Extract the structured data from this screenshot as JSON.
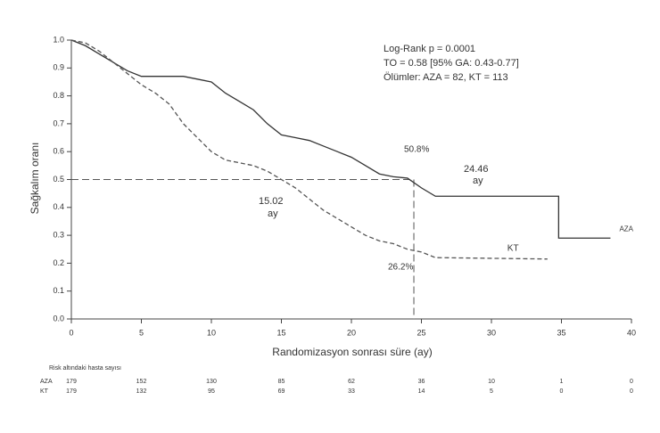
{
  "chart_data": {
    "type": "line",
    "ylabel": "Sağkalım oranı",
    "xlabel": "Randomizasyon sonrası süre (ay)",
    "xlim": [
      0,
      40
    ],
    "xticks": [
      0,
      5,
      10,
      15,
      20,
      25,
      30,
      35,
      40
    ],
    "ylim": [
      0,
      1
    ],
    "yticks": [
      {
        "value": 0,
        "label": "0.0"
      },
      0.1,
      0.2,
      0.3,
      0.4,
      0.5,
      0.6,
      0.7,
      0.8,
      0.9,
      {
        "value": 1,
        "label": "1.0"
      }
    ],
    "series": [
      {
        "name": "AZA",
        "color": "#333333",
        "dashed": false,
        "x": [
          0,
          1,
          2,
          3,
          4,
          5,
          7,
          8,
          9,
          10,
          11,
          12,
          13,
          14,
          15,
          16,
          17,
          18,
          19,
          20,
          21,
          22,
          23,
          24,
          25,
          26,
          34.8,
          34.8,
          38.5
        ],
        "values": [
          1,
          0.98,
          0.95,
          0.92,
          0.89,
          0.87,
          0.87,
          0.87,
          0.86,
          0.85,
          0.81,
          0.78,
          0.75,
          0.7,
          0.66,
          0.65,
          0.64,
          0.62,
          0.6,
          0.58,
          0.55,
          0.52,
          0.51,
          0.505,
          0.47,
          0.44,
          0.44,
          0.29,
          0.29
        ]
      },
      {
        "name": "KT",
        "color": "#555555",
        "dashed": true,
        "x": [
          0,
          1,
          2,
          3,
          4,
          5,
          6,
          7,
          8,
          9,
          10,
          11,
          12,
          13,
          14,
          15,
          16,
          17,
          18,
          19,
          20,
          21,
          22,
          23,
          24,
          25,
          26,
          34
        ],
        "values": [
          1,
          0.99,
          0.96,
          0.92,
          0.88,
          0.84,
          0.81,
          0.77,
          0.7,
          0.65,
          0.6,
          0.57,
          0.56,
          0.55,
          0.53,
          0.5,
          0.47,
          0.43,
          0.39,
          0.36,
          0.33,
          0.3,
          0.28,
          0.27,
          0.25,
          0.24,
          0.22,
          0.215
        ]
      }
    ],
    "median_line": {
      "y": 0.5,
      "x": 24.46
    },
    "annotations": [
      "Log-Rank p = 0.0001",
      "TO = 0.58 [95% GA: 0.43-0.77]",
      "Ölümler: AZA = 82, KT = 113",
      "50.8%",
      "24.46",
      "ay",
      "15.02",
      "ay",
      "26.2%"
    ],
    "risk_table": {
      "title": "Risk altındaki hasta sayısı",
      "rows": [
        {
          "name": "AZA",
          "values": [
            179,
            152,
            130,
            85,
            62,
            36,
            10,
            1,
            0
          ]
        },
        {
          "name": "KT",
          "values": [
            179,
            132,
            95,
            69,
            33,
            14,
            5,
            0,
            0
          ]
        }
      ]
    }
  }
}
